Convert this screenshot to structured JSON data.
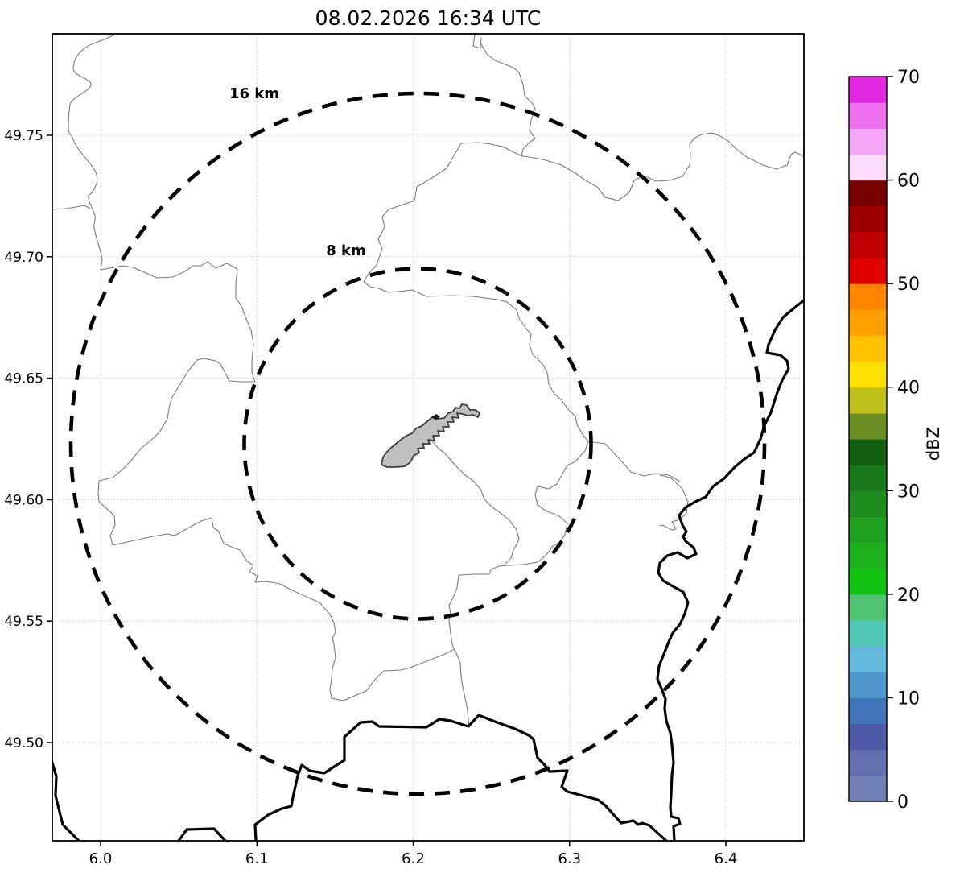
{
  "figure": {
    "title": "08.02.2026 16:34 UTC"
  },
  "map": {
    "range_rings": {
      "outer_label": "16 km",
      "inner_label": "8 km"
    },
    "colors": {
      "municipality_fill": "#c0c0c0",
      "municipality_outline": "#3c3c3c",
      "boundary_line": "#7a7a7a",
      "border_river_line": "#000000",
      "grid_line": "#c9c9c9",
      "ring_line": "#000000"
    }
  },
  "axes": {
    "x_tick_labels": [
      "6.0",
      "6.1",
      "6.2",
      "6.3",
      "6.4"
    ],
    "y_tick_labels": [
      "49.50",
      "49.55",
      "49.60",
      "49.65",
      "49.70",
      "49.75"
    ]
  },
  "colorbar": {
    "label": "dBZ",
    "tick_labels": [
      "0",
      "10",
      "20",
      "30",
      "40",
      "50",
      "60",
      "70"
    ],
    "band_colors": [
      "#7181b8",
      "#5f6fb0",
      "#4a5aa5",
      "#3f74b8",
      "#4d96cc",
      "#63b8dc",
      "#52c6b4",
      "#4ec473",
      "#12c312",
      "#1db21d",
      "#20a020",
      "#1d8e1d",
      "#187818",
      "#0f5f0f",
      "#6b8e23",
      "#bfbf1a",
      "#ffe000",
      "#ffc000",
      "#ffa000",
      "#ff8700",
      "#e00000",
      "#c00000",
      "#9e0000",
      "#780000",
      "#fbdcfb",
      "#f6a6f6",
      "#ee6fee",
      "#e226e2"
    ]
  },
  "chart_data": {
    "type": "map",
    "title": "08.02.2026 16:34 UTC",
    "description": "Weather-radar range map with 8 km and 16 km range rings around a radar site; no reflectivity echoes present.",
    "x_axis": {
      "ticks": [
        6.0,
        6.1,
        6.2,
        6.3,
        6.4
      ],
      "range": [
        5.969,
        6.45
      ],
      "grid": true
    },
    "y_axis": {
      "ticks": [
        49.5,
        49.55,
        49.6,
        49.65,
        49.7,
        49.75
      ],
      "range": [
        49.46,
        49.792
      ],
      "grid": true
    },
    "colorbar_scale": {
      "label": "dBZ",
      "min": 0,
      "max": 70,
      "step": 2.5,
      "ticks": [
        0,
        10,
        20,
        30,
        40,
        50,
        60,
        70
      ],
      "n_bands": 28
    },
    "range_rings_km": [
      8,
      16
    ],
    "ring_center": {
      "lon": 6.203,
      "lat": 49.623
    },
    "echoes_plotted": "none"
  }
}
